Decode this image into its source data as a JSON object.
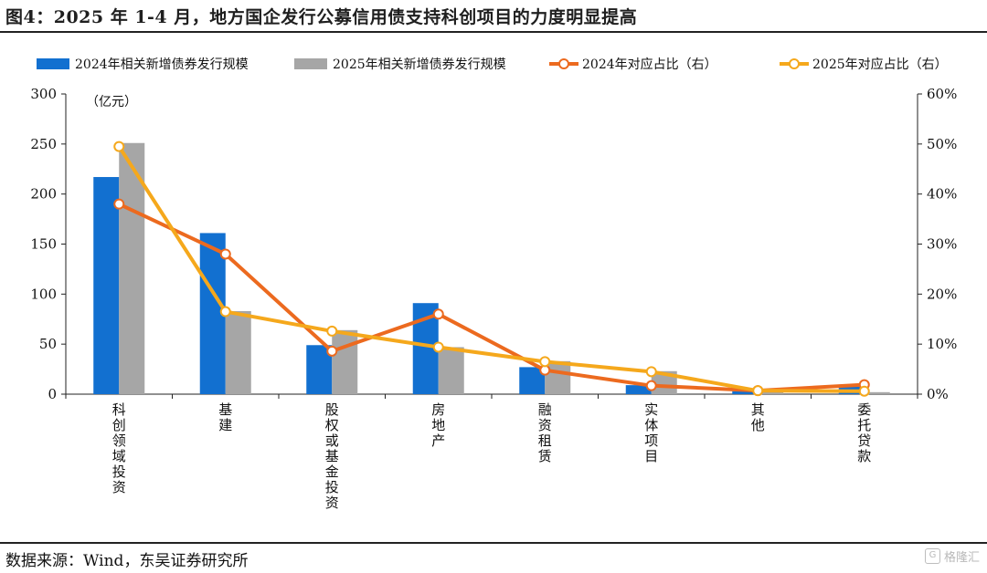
{
  "header": {
    "title": "图4：2025 年 1-4 月，地方国企发行公募信用债支持科创项目的力度明显提高"
  },
  "footer": {
    "source": "数据来源：Wind，东吴证券研究所",
    "watermark": "格隆汇"
  },
  "chart_data": {
    "type": "bar",
    "unit_label": "（亿元）",
    "categories": [
      "科创领域投资",
      "基建",
      "股权或基金投资",
      "房地产",
      "融资租赁",
      "实体项目",
      "其他",
      "委托贷款"
    ],
    "series": [
      {
        "name": "2024年相关新增债券发行规模",
        "type": "bar",
        "axis": "left",
        "color": "#1270d0",
        "values": [
          217,
          161,
          49,
          91,
          27,
          9,
          3,
          9
        ]
      },
      {
        "name": "2025年相关新增债券发行规模",
        "type": "bar",
        "axis": "left",
        "color": "#a6a6a6",
        "values": [
          251,
          83,
          64,
          47,
          33,
          23,
          4,
          2
        ]
      },
      {
        "name": "2024年对应占比（右）",
        "type": "line",
        "axis": "right",
        "color": "#ec6a1f",
        "values": [
          0.38,
          0.28,
          0.086,
          0.16,
          0.048,
          0.017,
          0.007,
          0.019
        ]
      },
      {
        "name": "2025年对应占比（右）",
        "type": "line",
        "axis": "right",
        "color": "#f5a81c",
        "values": [
          0.495,
          0.165,
          0.126,
          0.094,
          0.065,
          0.045,
          0.007,
          0.006
        ]
      }
    ],
    "y_left": {
      "min": 0,
      "max": 300,
      "ticks": [
        "0",
        "50",
        "100",
        "150",
        "200",
        "250",
        "300"
      ]
    },
    "y_right": {
      "min": 0,
      "max": 0.6,
      "ticks": [
        "0%",
        "10%",
        "20%",
        "30%",
        "40%",
        "50%",
        "60%"
      ]
    },
    "legend_position": "top",
    "grid": false
  }
}
